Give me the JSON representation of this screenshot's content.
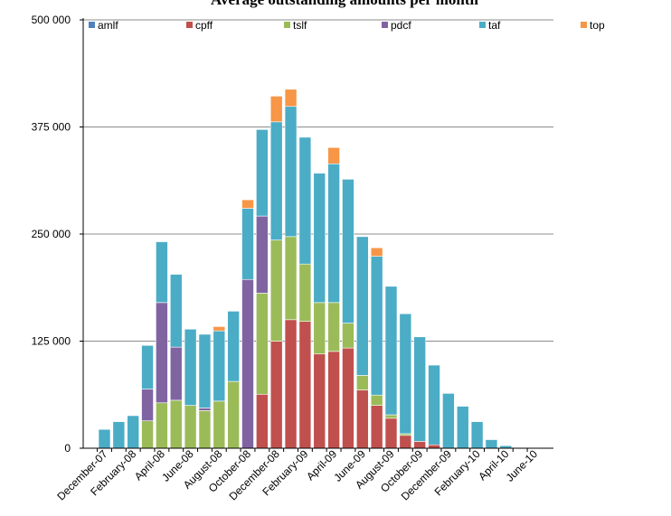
{
  "chart_data": {
    "type": "bar",
    "stacked": true,
    "title": "Average outstanding amounts per month",
    "xlabel": "",
    "ylabel": "",
    "ylim": [
      0,
      500000
    ],
    "yticks": [
      "0",
      "125 000",
      "250 000",
      "375 000",
      "500 000"
    ],
    "ytick_values": [
      0,
      125000,
      250000,
      375000,
      500000
    ],
    "grid": true,
    "legend_position": "top",
    "categories": [
      "December-07",
      "January-08",
      "February-08",
      "March-08",
      "April-08",
      "May-08",
      "June-08",
      "July-08",
      "August-08",
      "September-08",
      "October-08",
      "November-08",
      "December-08",
      "January-09",
      "February-09",
      "March-09",
      "April-09",
      "May-09",
      "June-09",
      "July-09",
      "August-09",
      "September-09",
      "October-09",
      "November-09",
      "December-09",
      "January-10",
      "February-10",
      "March-10",
      "April-10",
      "May-10",
      "June-10"
    ],
    "xtick_labels": [
      "December-07",
      "February-08",
      "April-08",
      "June-08",
      "August-08",
      "October-08",
      "December-08",
      "February-09",
      "April-09",
      "June-09",
      "August-09",
      "October-09",
      "December-09",
      "February-10",
      "April-10",
      "June-10"
    ],
    "series": [
      {
        "name": "amlf",
        "color": "#4f81bd",
        "values": [
          0,
          0,
          0,
          0,
          0,
          0,
          0,
          0,
          0,
          0,
          0,
          0,
          0,
          0,
          0,
          0,
          0,
          0,
          0,
          0,
          0,
          0,
          0,
          0,
          0,
          0,
          0,
          0,
          0,
          0,
          0
        ]
      },
      {
        "name": "cpff",
        "color": "#c0504d",
        "values": [
          0,
          0,
          0,
          0,
          0,
          0,
          0,
          0,
          0,
          0,
          0,
          63000,
          125000,
          150000,
          148000,
          110000,
          113000,
          117000,
          68000,
          50000,
          35000,
          15000,
          8000,
          4000,
          0,
          0,
          0,
          0,
          0,
          0,
          0
        ]
      },
      {
        "name": "tslf",
        "color": "#9bbb59",
        "values": [
          0,
          0,
          0,
          32000,
          53000,
          56000,
          50000,
          44000,
          55000,
          78000,
          0,
          118000,
          118000,
          97000,
          67000,
          60000,
          57000,
          29000,
          17000,
          12000,
          4000,
          2000,
          0,
          0,
          0,
          0,
          0,
          0,
          0,
          0,
          0
        ]
      },
      {
        "name": "pdcf",
        "color": "#8064a2",
        "values": [
          0,
          0,
          0,
          37000,
          117000,
          62000,
          0,
          3000,
          0,
          0,
          197000,
          90000,
          0,
          0,
          0,
          0,
          0,
          0,
          0,
          0,
          0,
          0,
          0,
          0,
          0,
          0,
          0,
          0,
          0,
          0,
          0
        ]
      },
      {
        "name": "taf",
        "color": "#4bacc6",
        "values": [
          22000,
          31000,
          38000,
          51000,
          71000,
          85000,
          89000,
          86000,
          82000,
          82000,
          83000,
          101000,
          138000,
          152000,
          148000,
          151000,
          162000,
          168000,
          162000,
          162000,
          150000,
          140000,
          122000,
          93000,
          64000,
          49000,
          31000,
          10000,
          3000,
          0,
          0
        ]
      },
      {
        "name": "top",
        "color": "#f79646",
        "values": [
          0,
          0,
          0,
          0,
          0,
          0,
          0,
          0,
          5000,
          0,
          10000,
          0,
          30000,
          20000,
          0,
          0,
          19000,
          0,
          0,
          10000,
          0,
          0,
          0,
          0,
          0,
          0,
          0,
          0,
          0,
          0,
          0
        ]
      }
    ]
  }
}
